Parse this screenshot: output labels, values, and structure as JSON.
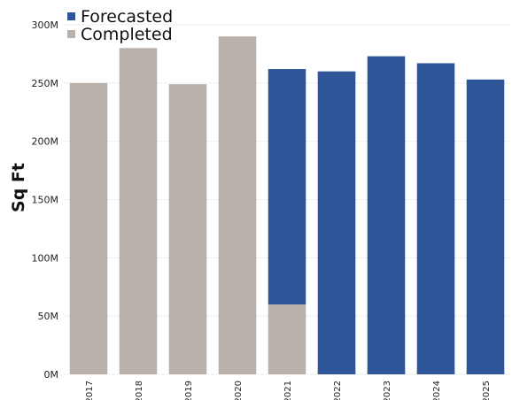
{
  "chart_data": {
    "type": "bar",
    "stacked": true,
    "ylabel": "Sq Ft",
    "ylim": [
      0,
      300000000
    ],
    "yticks": [
      0,
      50000000,
      100000000,
      150000000,
      200000000,
      250000000,
      300000000
    ],
    "ytick_labels": [
      "0M",
      "50M",
      "100M",
      "150M",
      "200M",
      "250M",
      "300M"
    ],
    "categories": [
      "2017",
      "2018",
      "2019",
      "2020",
      "2021",
      "2022",
      "2023",
      "2024",
      "2025"
    ],
    "series": [
      {
        "name": "Completed",
        "color": "#b9b0aa",
        "values": [
          250000000,
          280000000,
          249000000,
          290000000,
          60000000,
          0,
          0,
          0,
          0
        ]
      },
      {
        "name": "Forecasted",
        "color": "#2e5597",
        "values": [
          0,
          0,
          0,
          0,
          202000000,
          260000000,
          273000000,
          267000000,
          253000000
        ]
      }
    ],
    "legend": {
      "placement": "top-left",
      "order": [
        "Forecasted",
        "Completed"
      ]
    },
    "grid": true
  }
}
